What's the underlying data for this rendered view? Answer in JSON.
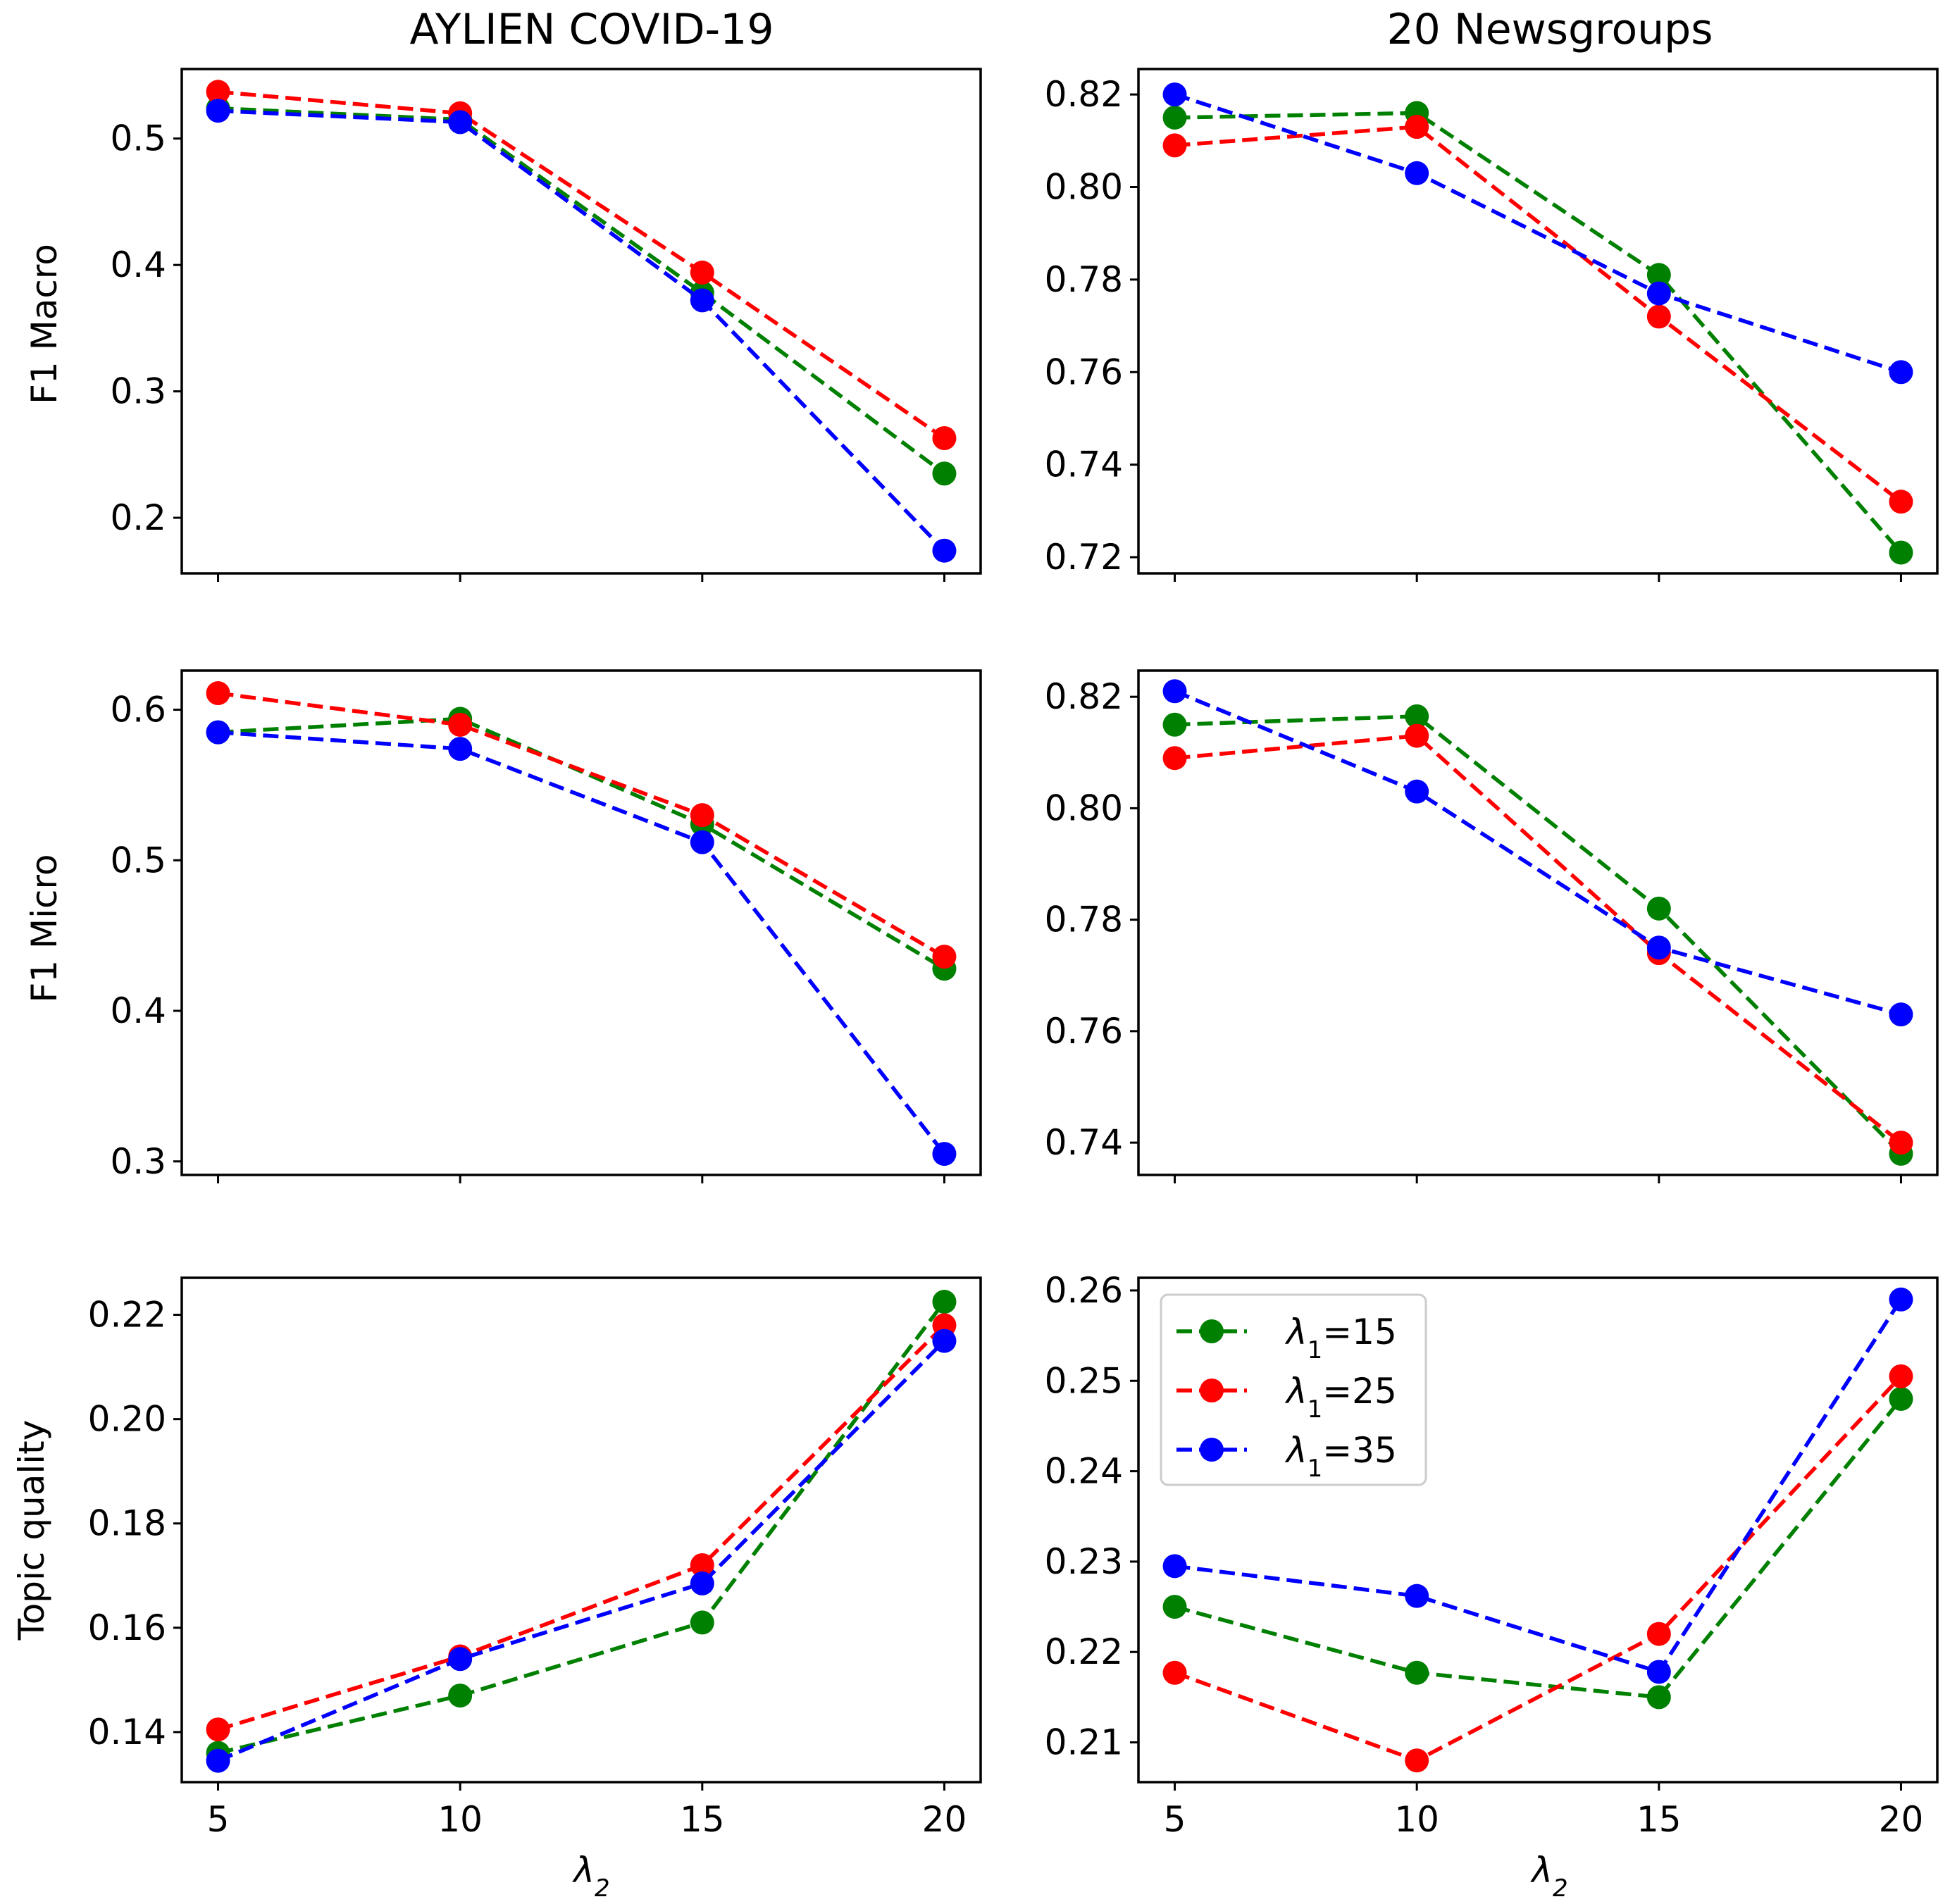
{
  "figure": {
    "column_titles": [
      "AYLIEN COVID-19",
      "20 Newsgroups"
    ],
    "row_labels": [
      "F1 Macro",
      "F1 Micro",
      "Topic quality"
    ],
    "x_label": "λ2",
    "legend": [
      {
        "label": "λ1=15",
        "color": "#008000"
      },
      {
        "label": "λ1=25",
        "color": "#ff0000"
      },
      {
        "label": "λ1=35",
        "color": "#0000ff"
      }
    ]
  },
  "chart_data": [
    {
      "type": "line",
      "panel": "aylien-f1-macro",
      "title": "AYLIEN COVID-19",
      "xlabel": "",
      "ylabel": "F1 Macro",
      "x": [
        5,
        10,
        15,
        20
      ],
      "xticks": [
        "5",
        "10",
        "15",
        "20"
      ],
      "xlim": [
        4.25,
        20.75
      ],
      "ylim": [
        0.156,
        0.555
      ],
      "yticks": [
        0.2,
        0.3,
        0.4,
        0.5
      ],
      "ytick_labels": [
        "0.2",
        "0.3",
        "0.4",
        "0.5"
      ],
      "series": [
        {
          "name": "λ1=15",
          "color": "#008000",
          "values": [
            0.524,
            0.515,
            0.378,
            0.235
          ]
        },
        {
          "name": "λ1=25",
          "color": "#ff0000",
          "values": [
            0.537,
            0.52,
            0.394,
            0.263
          ]
        },
        {
          "name": "λ1=35",
          "color": "#0000ff",
          "values": [
            0.522,
            0.513,
            0.372,
            0.174
          ]
        }
      ]
    },
    {
      "type": "line",
      "panel": "newsgroups-f1-macro",
      "title": "20 Newsgroups",
      "xlabel": "",
      "ylabel": "",
      "x": [
        5,
        10,
        15,
        20
      ],
      "xticks": [
        "5",
        "10",
        "15",
        "20"
      ],
      "xlim": [
        4.25,
        20.75
      ],
      "ylim": [
        0.7165,
        0.8255
      ],
      "yticks": [
        0.72,
        0.74,
        0.76,
        0.78,
        0.8,
        0.82
      ],
      "ytick_labels": [
        "0.72",
        "0.74",
        "0.76",
        "0.78",
        "0.80",
        "0.82"
      ],
      "series": [
        {
          "name": "λ1=15",
          "color": "#008000",
          "values": [
            0.815,
            0.816,
            0.781,
            0.721
          ]
        },
        {
          "name": "λ1=25",
          "color": "#ff0000",
          "values": [
            0.809,
            0.813,
            0.772,
            0.732
          ]
        },
        {
          "name": "λ1=35",
          "color": "#0000ff",
          "values": [
            0.82,
            0.803,
            0.777,
            0.76
          ]
        }
      ]
    },
    {
      "type": "line",
      "panel": "aylien-f1-micro",
      "title": "",
      "xlabel": "",
      "ylabel": "F1 Micro",
      "x": [
        5,
        10,
        15,
        20
      ],
      "xticks": [
        "5",
        "10",
        "15",
        "20"
      ],
      "xlim": [
        4.25,
        20.75
      ],
      "ylim": [
        0.291,
        0.626
      ],
      "yticks": [
        0.3,
        0.4,
        0.5,
        0.6
      ],
      "ytick_labels": [
        "0.3",
        "0.4",
        "0.5",
        "0.6"
      ],
      "series": [
        {
          "name": "λ1=15",
          "color": "#008000",
          "values": [
            0.585,
            0.594,
            0.524,
            0.428
          ]
        },
        {
          "name": "λ1=25",
          "color": "#ff0000",
          "values": [
            0.611,
            0.59,
            0.53,
            0.436
          ]
        },
        {
          "name": "λ1=35",
          "color": "#0000ff",
          "values": [
            0.585,
            0.574,
            0.512,
            0.305
          ]
        }
      ]
    },
    {
      "type": "line",
      "panel": "newsgroups-f1-micro",
      "title": "",
      "xlabel": "",
      "ylabel": "",
      "x": [
        5,
        10,
        15,
        20
      ],
      "xticks": [
        "5",
        "10",
        "15",
        "20"
      ],
      "xlim": [
        4.25,
        20.75
      ],
      "ylim": [
        0.7342,
        0.8247
      ],
      "yticks": [
        0.74,
        0.76,
        0.78,
        0.8,
        0.82
      ],
      "ytick_labels": [
        "0.74",
        "0.76",
        "0.78",
        "0.80",
        "0.82"
      ],
      "series": [
        {
          "name": "λ1=15",
          "color": "#008000",
          "values": [
            0.815,
            0.8165,
            0.782,
            0.738
          ]
        },
        {
          "name": "λ1=25",
          "color": "#ff0000",
          "values": [
            0.809,
            0.813,
            0.774,
            0.74
          ]
        },
        {
          "name": "λ1=35",
          "color": "#0000ff",
          "values": [
            0.821,
            0.803,
            0.775,
            0.763
          ]
        }
      ]
    },
    {
      "type": "line",
      "panel": "aylien-topic-quality",
      "title": "",
      "xlabel": "λ2",
      "ylabel": "Topic quality",
      "x": [
        5,
        10,
        15,
        20
      ],
      "xticks": [
        "5",
        "10",
        "15",
        "20"
      ],
      "xlim": [
        4.25,
        20.75
      ],
      "ylim": [
        0.1304,
        0.2271
      ],
      "yticks": [
        0.14,
        0.16,
        0.18,
        0.2,
        0.22
      ],
      "ytick_labels": [
        "0.14",
        "0.16",
        "0.18",
        "0.20",
        "0.22"
      ],
      "series": [
        {
          "name": "λ1=15",
          "color": "#008000",
          "values": [
            0.136,
            0.147,
            0.161,
            0.2225
          ]
        },
        {
          "name": "λ1=25",
          "color": "#ff0000",
          "values": [
            0.1405,
            0.1545,
            0.172,
            0.218
          ]
        },
        {
          "name": "λ1=35",
          "color": "#0000ff",
          "values": [
            0.1345,
            0.154,
            0.1685,
            0.215
          ]
        }
      ]
    },
    {
      "type": "line",
      "panel": "newsgroups-topic-quality",
      "title": "",
      "xlabel": "λ2",
      "ylabel": "",
      "x": [
        5,
        10,
        15,
        20
      ],
      "xticks": [
        "5",
        "10",
        "15",
        "20"
      ],
      "xlim": [
        4.25,
        20.75
      ],
      "ylim": [
        0.2056,
        0.2614
      ],
      "yticks": [
        0.21,
        0.22,
        0.23,
        0.24,
        0.25,
        0.26
      ],
      "ytick_labels": [
        "0.21",
        "0.22",
        "0.23",
        "0.24",
        "0.25",
        "0.26"
      ],
      "legend": "upper-left",
      "series": [
        {
          "name": "λ1=15",
          "color": "#008000",
          "values": [
            0.225,
            0.2177,
            0.215,
            0.248
          ]
        },
        {
          "name": "λ1=25",
          "color": "#ff0000",
          "values": [
            0.2177,
            0.208,
            0.222,
            0.2505
          ]
        },
        {
          "name": "λ1=35",
          "color": "#0000ff",
          "values": [
            0.2295,
            0.2262,
            0.2178,
            0.259
          ]
        }
      ]
    }
  ]
}
